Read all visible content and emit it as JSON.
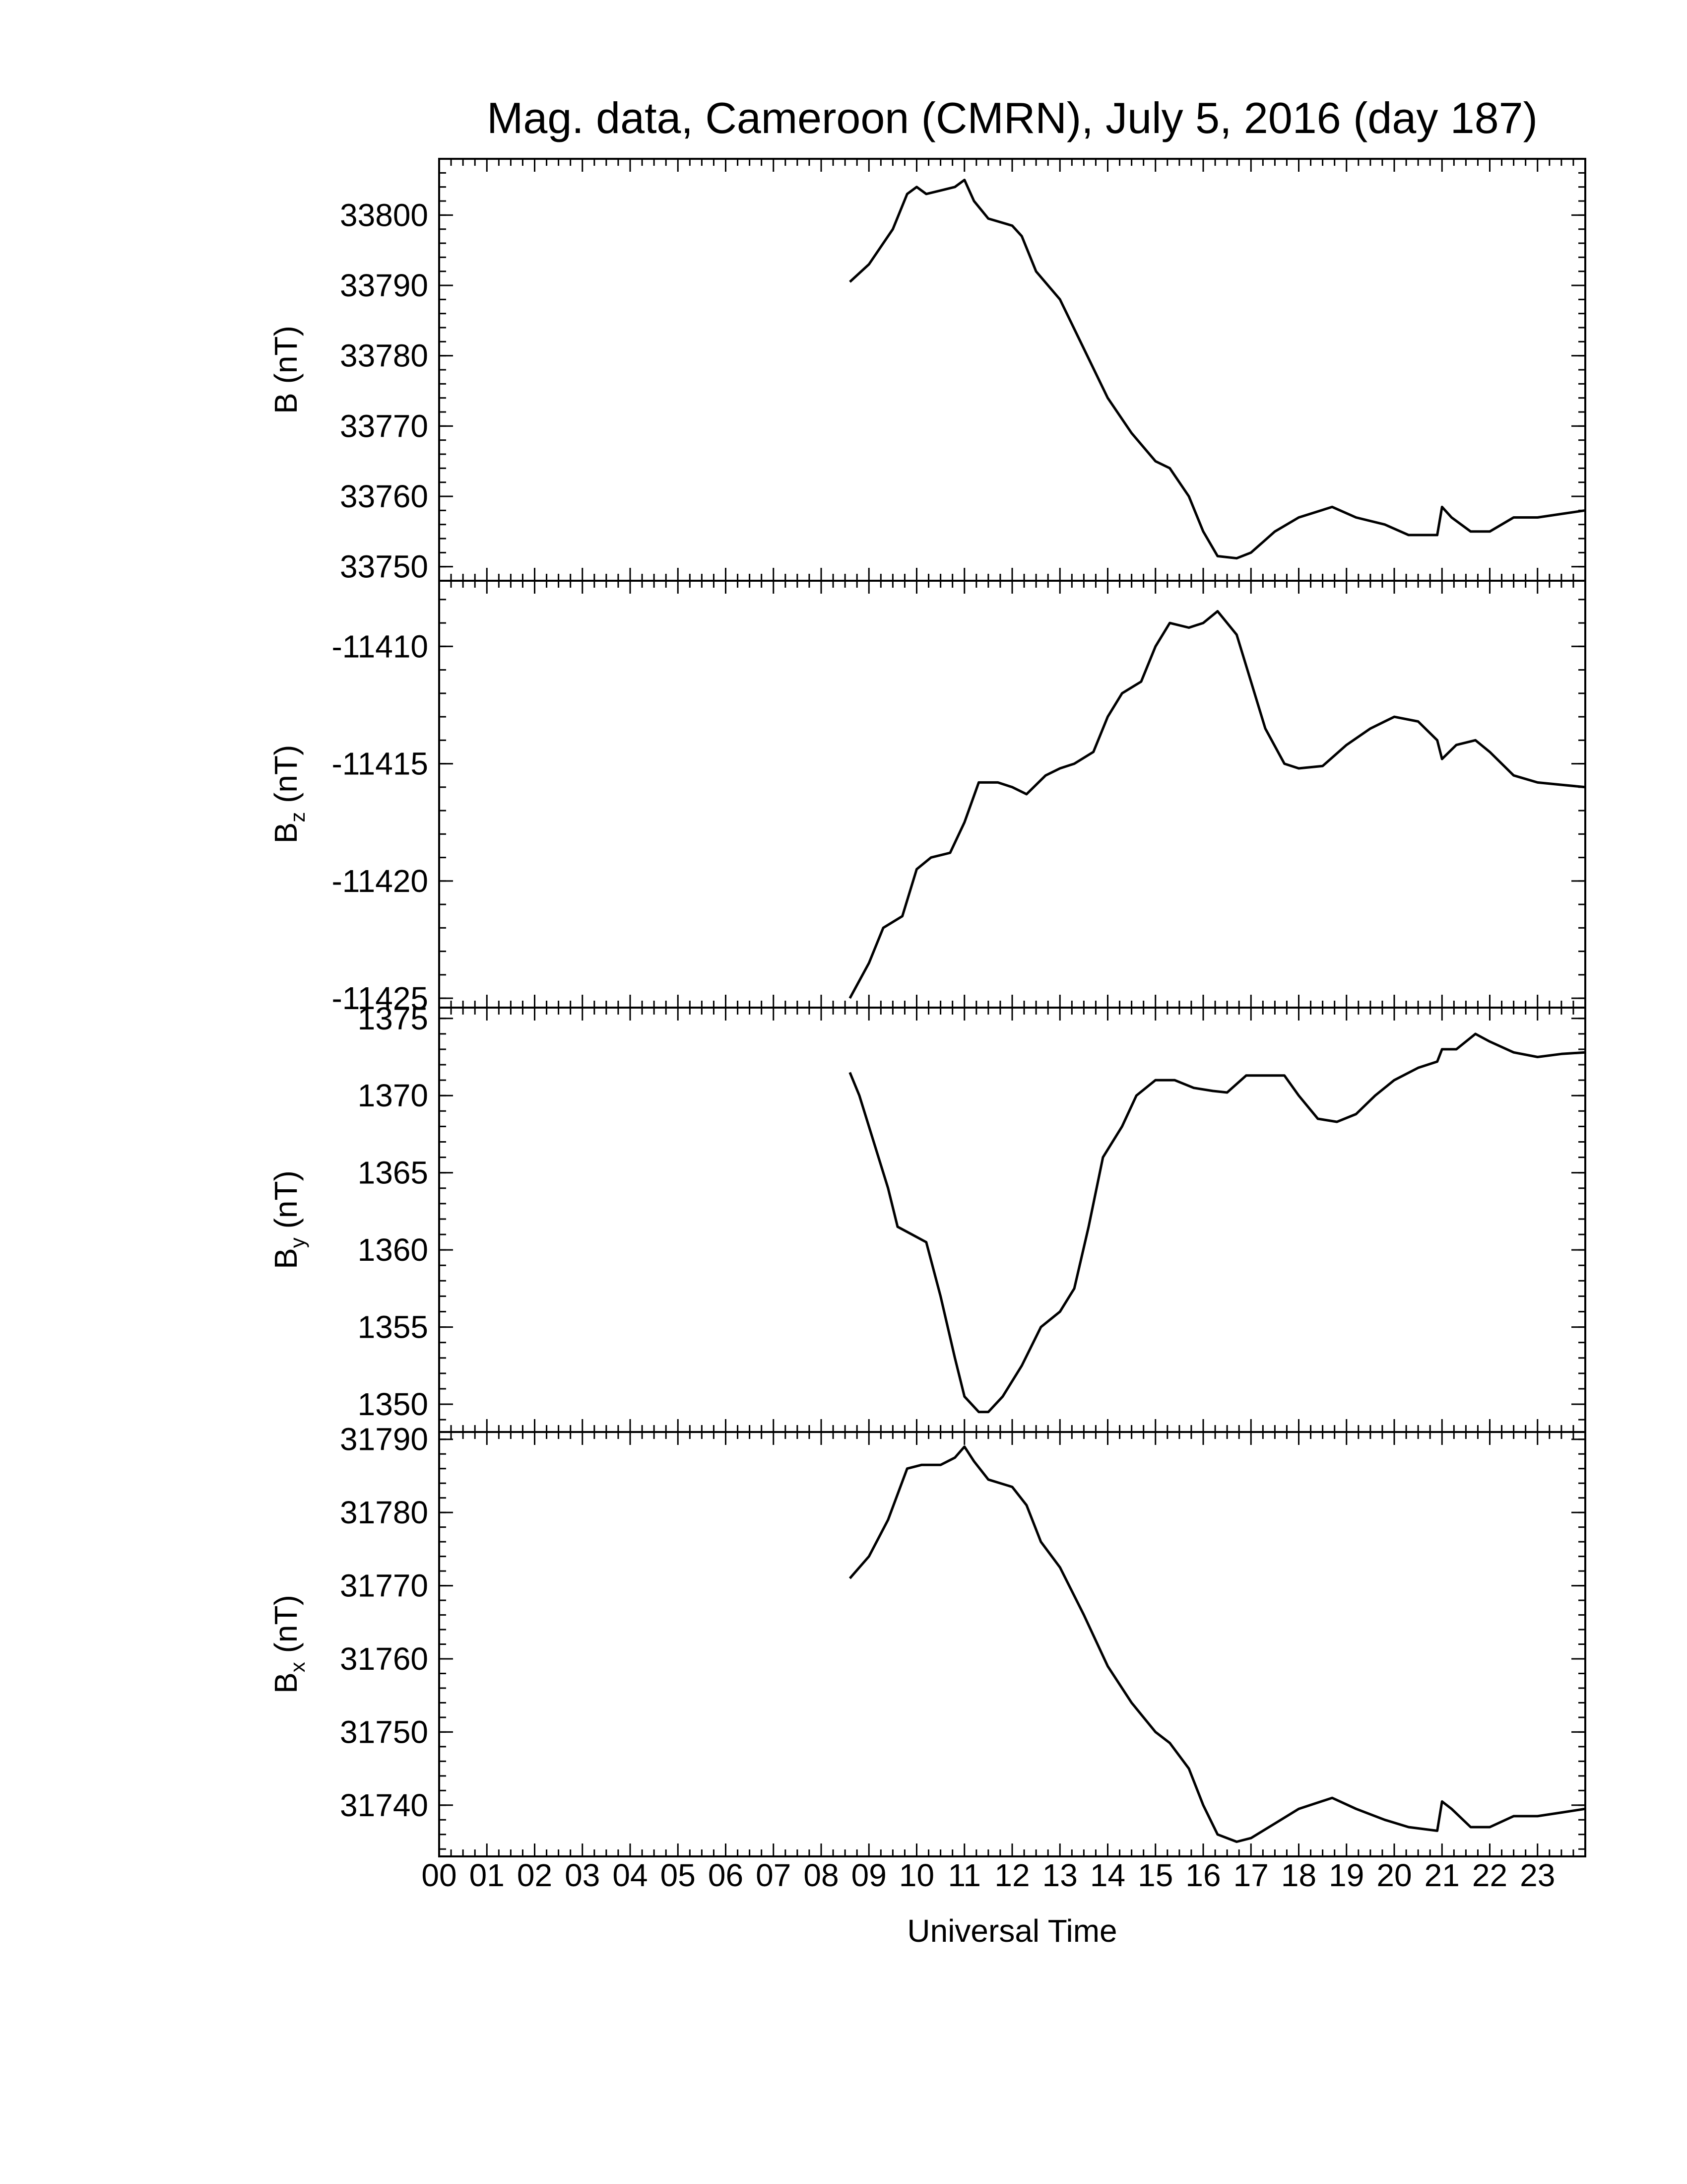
{
  "chart_data": {
    "type": "line",
    "title": "Mag. data, Cameroon (CMRN), July 5, 2016 (day 187)",
    "xlabel": "Universal Time",
    "xlim": [
      0,
      24
    ],
    "x_tick_labels": [
      "00",
      "01",
      "02",
      "03",
      "04",
      "05",
      "06",
      "07",
      "08",
      "09",
      "10",
      "11",
      "12",
      "13",
      "14",
      "15",
      "16",
      "17",
      "18",
      "19",
      "20",
      "21",
      "22",
      "23"
    ],
    "panels": [
      {
        "id": "B",
        "ylabel_main": "B",
        "ylabel_sub": "",
        "ylabel_unit": "(nT)",
        "ylim": [
          33748,
          33808
        ],
        "yticks": [
          33750,
          33760,
          33770,
          33780,
          33790,
          33800
        ],
        "points": [
          [
            8.6,
            33790.5
          ],
          [
            9.0,
            33793
          ],
          [
            9.5,
            33798
          ],
          [
            9.8,
            33803
          ],
          [
            10.0,
            33804
          ],
          [
            10.2,
            33803
          ],
          [
            10.5,
            33803.5
          ],
          [
            10.8,
            33804
          ],
          [
            11.0,
            33805
          ],
          [
            11.2,
            33802
          ],
          [
            11.5,
            33799.5
          ],
          [
            12.0,
            33798.5
          ],
          [
            12.2,
            33797
          ],
          [
            12.5,
            33792
          ],
          [
            13.0,
            33788
          ],
          [
            13.5,
            33781
          ],
          [
            14.0,
            33774
          ],
          [
            14.5,
            33769
          ],
          [
            15.0,
            33765
          ],
          [
            15.3,
            33764
          ],
          [
            15.7,
            33760
          ],
          [
            16.0,
            33755
          ],
          [
            16.3,
            33751.5
          ],
          [
            16.7,
            33751.2
          ],
          [
            17.0,
            33752
          ],
          [
            17.5,
            33755
          ],
          [
            18.0,
            33757
          ],
          [
            18.7,
            33758.5
          ],
          [
            19.2,
            33757
          ],
          [
            19.8,
            33756
          ],
          [
            20.3,
            33754.5
          ],
          [
            20.9,
            33754.5
          ],
          [
            21.0,
            33758.5
          ],
          [
            21.2,
            33757
          ],
          [
            21.6,
            33755
          ],
          [
            22.0,
            33755
          ],
          [
            22.5,
            33757
          ],
          [
            23.0,
            33757
          ],
          [
            23.5,
            33757.5
          ],
          [
            24.0,
            33758
          ]
        ]
      },
      {
        "id": "Bz",
        "ylabel_main": "B",
        "ylabel_sub": "z",
        "ylabel_unit": "(nT)",
        "ylim": [
          -11425.4,
          -11407.2
        ],
        "yticks": [
          -11425,
          -11420,
          -11415,
          -11410
        ],
        "points": [
          [
            8.6,
            -11425
          ],
          [
            9.0,
            -11423.5
          ],
          [
            9.3,
            -11422
          ],
          [
            9.7,
            -11421.5
          ],
          [
            10.0,
            -11419.5
          ],
          [
            10.3,
            -11419
          ],
          [
            10.7,
            -11418.8
          ],
          [
            11.0,
            -11417.5
          ],
          [
            11.3,
            -11415.8
          ],
          [
            11.7,
            -11415.8
          ],
          [
            12.0,
            -11416
          ],
          [
            12.3,
            -11416.3
          ],
          [
            12.7,
            -11415.5
          ],
          [
            13.0,
            -11415.2
          ],
          [
            13.3,
            -11415
          ],
          [
            13.7,
            -11414.5
          ],
          [
            14.0,
            -11413
          ],
          [
            14.3,
            -11412
          ],
          [
            14.7,
            -11411.5
          ],
          [
            15.0,
            -11410
          ],
          [
            15.3,
            -11409
          ],
          [
            15.7,
            -11409.2
          ],
          [
            16.0,
            -11409
          ],
          [
            16.3,
            -11408.5
          ],
          [
            16.7,
            -11409.5
          ],
          [
            17.0,
            -11411.5
          ],
          [
            17.3,
            -11413.5
          ],
          [
            17.7,
            -11415
          ],
          [
            18.0,
            -11415.2
          ],
          [
            18.5,
            -11415.1
          ],
          [
            19.0,
            -11414.2
          ],
          [
            19.5,
            -11413.5
          ],
          [
            20.0,
            -11413
          ],
          [
            20.5,
            -11413.2
          ],
          [
            20.9,
            -11414
          ],
          [
            21.0,
            -11414.8
          ],
          [
            21.3,
            -11414.2
          ],
          [
            21.7,
            -11414
          ],
          [
            22.0,
            -11414.5
          ],
          [
            22.5,
            -11415.5
          ],
          [
            23.0,
            -11415.8
          ],
          [
            23.5,
            -11415.9
          ],
          [
            24.0,
            -11416
          ]
        ]
      },
      {
        "id": "By",
        "ylabel_main": "B",
        "ylabel_sub": "y",
        "ylabel_unit": "(nT)",
        "ylim": [
          1348.2,
          1375.7
        ],
        "yticks": [
          1350,
          1355,
          1360,
          1365,
          1370,
          1375
        ],
        "points": [
          [
            8.6,
            1371.5
          ],
          [
            8.8,
            1370
          ],
          [
            9.1,
            1367
          ],
          [
            9.4,
            1364
          ],
          [
            9.6,
            1361.5
          ],
          [
            9.9,
            1361
          ],
          [
            10.2,
            1360.5
          ],
          [
            10.5,
            1357
          ],
          [
            10.8,
            1353
          ],
          [
            11.0,
            1350.5
          ],
          [
            11.3,
            1349.5
          ],
          [
            11.5,
            1349.5
          ],
          [
            11.8,
            1350.5
          ],
          [
            12.2,
            1352.5
          ],
          [
            12.6,
            1355
          ],
          [
            13.0,
            1356
          ],
          [
            13.3,
            1357.5
          ],
          [
            13.6,
            1361.5
          ],
          [
            13.9,
            1366
          ],
          [
            14.3,
            1368
          ],
          [
            14.6,
            1370
          ],
          [
            15.0,
            1371
          ],
          [
            15.4,
            1371
          ],
          [
            15.8,
            1370.5
          ],
          [
            16.2,
            1370.3
          ],
          [
            16.5,
            1370.2
          ],
          [
            16.9,
            1371.3
          ],
          [
            17.3,
            1371.3
          ],
          [
            17.7,
            1371.3
          ],
          [
            18.0,
            1370
          ],
          [
            18.4,
            1368.5
          ],
          [
            18.8,
            1368.3
          ],
          [
            19.2,
            1368.8
          ],
          [
            19.6,
            1370
          ],
          [
            20.0,
            1371
          ],
          [
            20.5,
            1371.8
          ],
          [
            20.9,
            1372.2
          ],
          [
            21.0,
            1373
          ],
          [
            21.3,
            1373
          ],
          [
            21.7,
            1374
          ],
          [
            22.0,
            1373.5
          ],
          [
            22.5,
            1372.8
          ],
          [
            23.0,
            1372.5
          ],
          [
            23.5,
            1372.7
          ],
          [
            24.0,
            1372.8
          ]
        ]
      },
      {
        "id": "Bx",
        "ylabel_main": "B",
        "ylabel_sub": "x",
        "ylabel_unit": "(nT)",
        "ylim": [
          31733,
          31791
        ],
        "yticks": [
          31740,
          31750,
          31760,
          31770,
          31780,
          31790
        ],
        "points": [
          [
            8.6,
            31771
          ],
          [
            9.0,
            31774
          ],
          [
            9.4,
            31779
          ],
          [
            9.8,
            31786
          ],
          [
            10.1,
            31786.5
          ],
          [
            10.5,
            31786.5
          ],
          [
            10.8,
            31787.5
          ],
          [
            11.0,
            31789
          ],
          [
            11.2,
            31787
          ],
          [
            11.5,
            31784.5
          ],
          [
            12.0,
            31783.5
          ],
          [
            12.3,
            31781
          ],
          [
            12.6,
            31776
          ],
          [
            13.0,
            31772.5
          ],
          [
            13.5,
            31766
          ],
          [
            14.0,
            31759
          ],
          [
            14.5,
            31754
          ],
          [
            15.0,
            31750
          ],
          [
            15.3,
            31748.5
          ],
          [
            15.7,
            31745
          ],
          [
            16.0,
            31740
          ],
          [
            16.3,
            31736
          ],
          [
            16.7,
            31735
          ],
          [
            17.0,
            31735.5
          ],
          [
            17.5,
            31737.5
          ],
          [
            18.0,
            31739.5
          ],
          [
            18.7,
            31741
          ],
          [
            19.2,
            31739.5
          ],
          [
            19.8,
            31738
          ],
          [
            20.3,
            31737
          ],
          [
            20.9,
            31736.5
          ],
          [
            21.0,
            31740.5
          ],
          [
            21.2,
            31739.5
          ],
          [
            21.6,
            31737
          ],
          [
            22.0,
            31737
          ],
          [
            22.5,
            31738.5
          ],
          [
            23.0,
            31738.5
          ],
          [
            23.5,
            31739
          ],
          [
            24.0,
            31739.5
          ]
        ]
      }
    ]
  }
}
